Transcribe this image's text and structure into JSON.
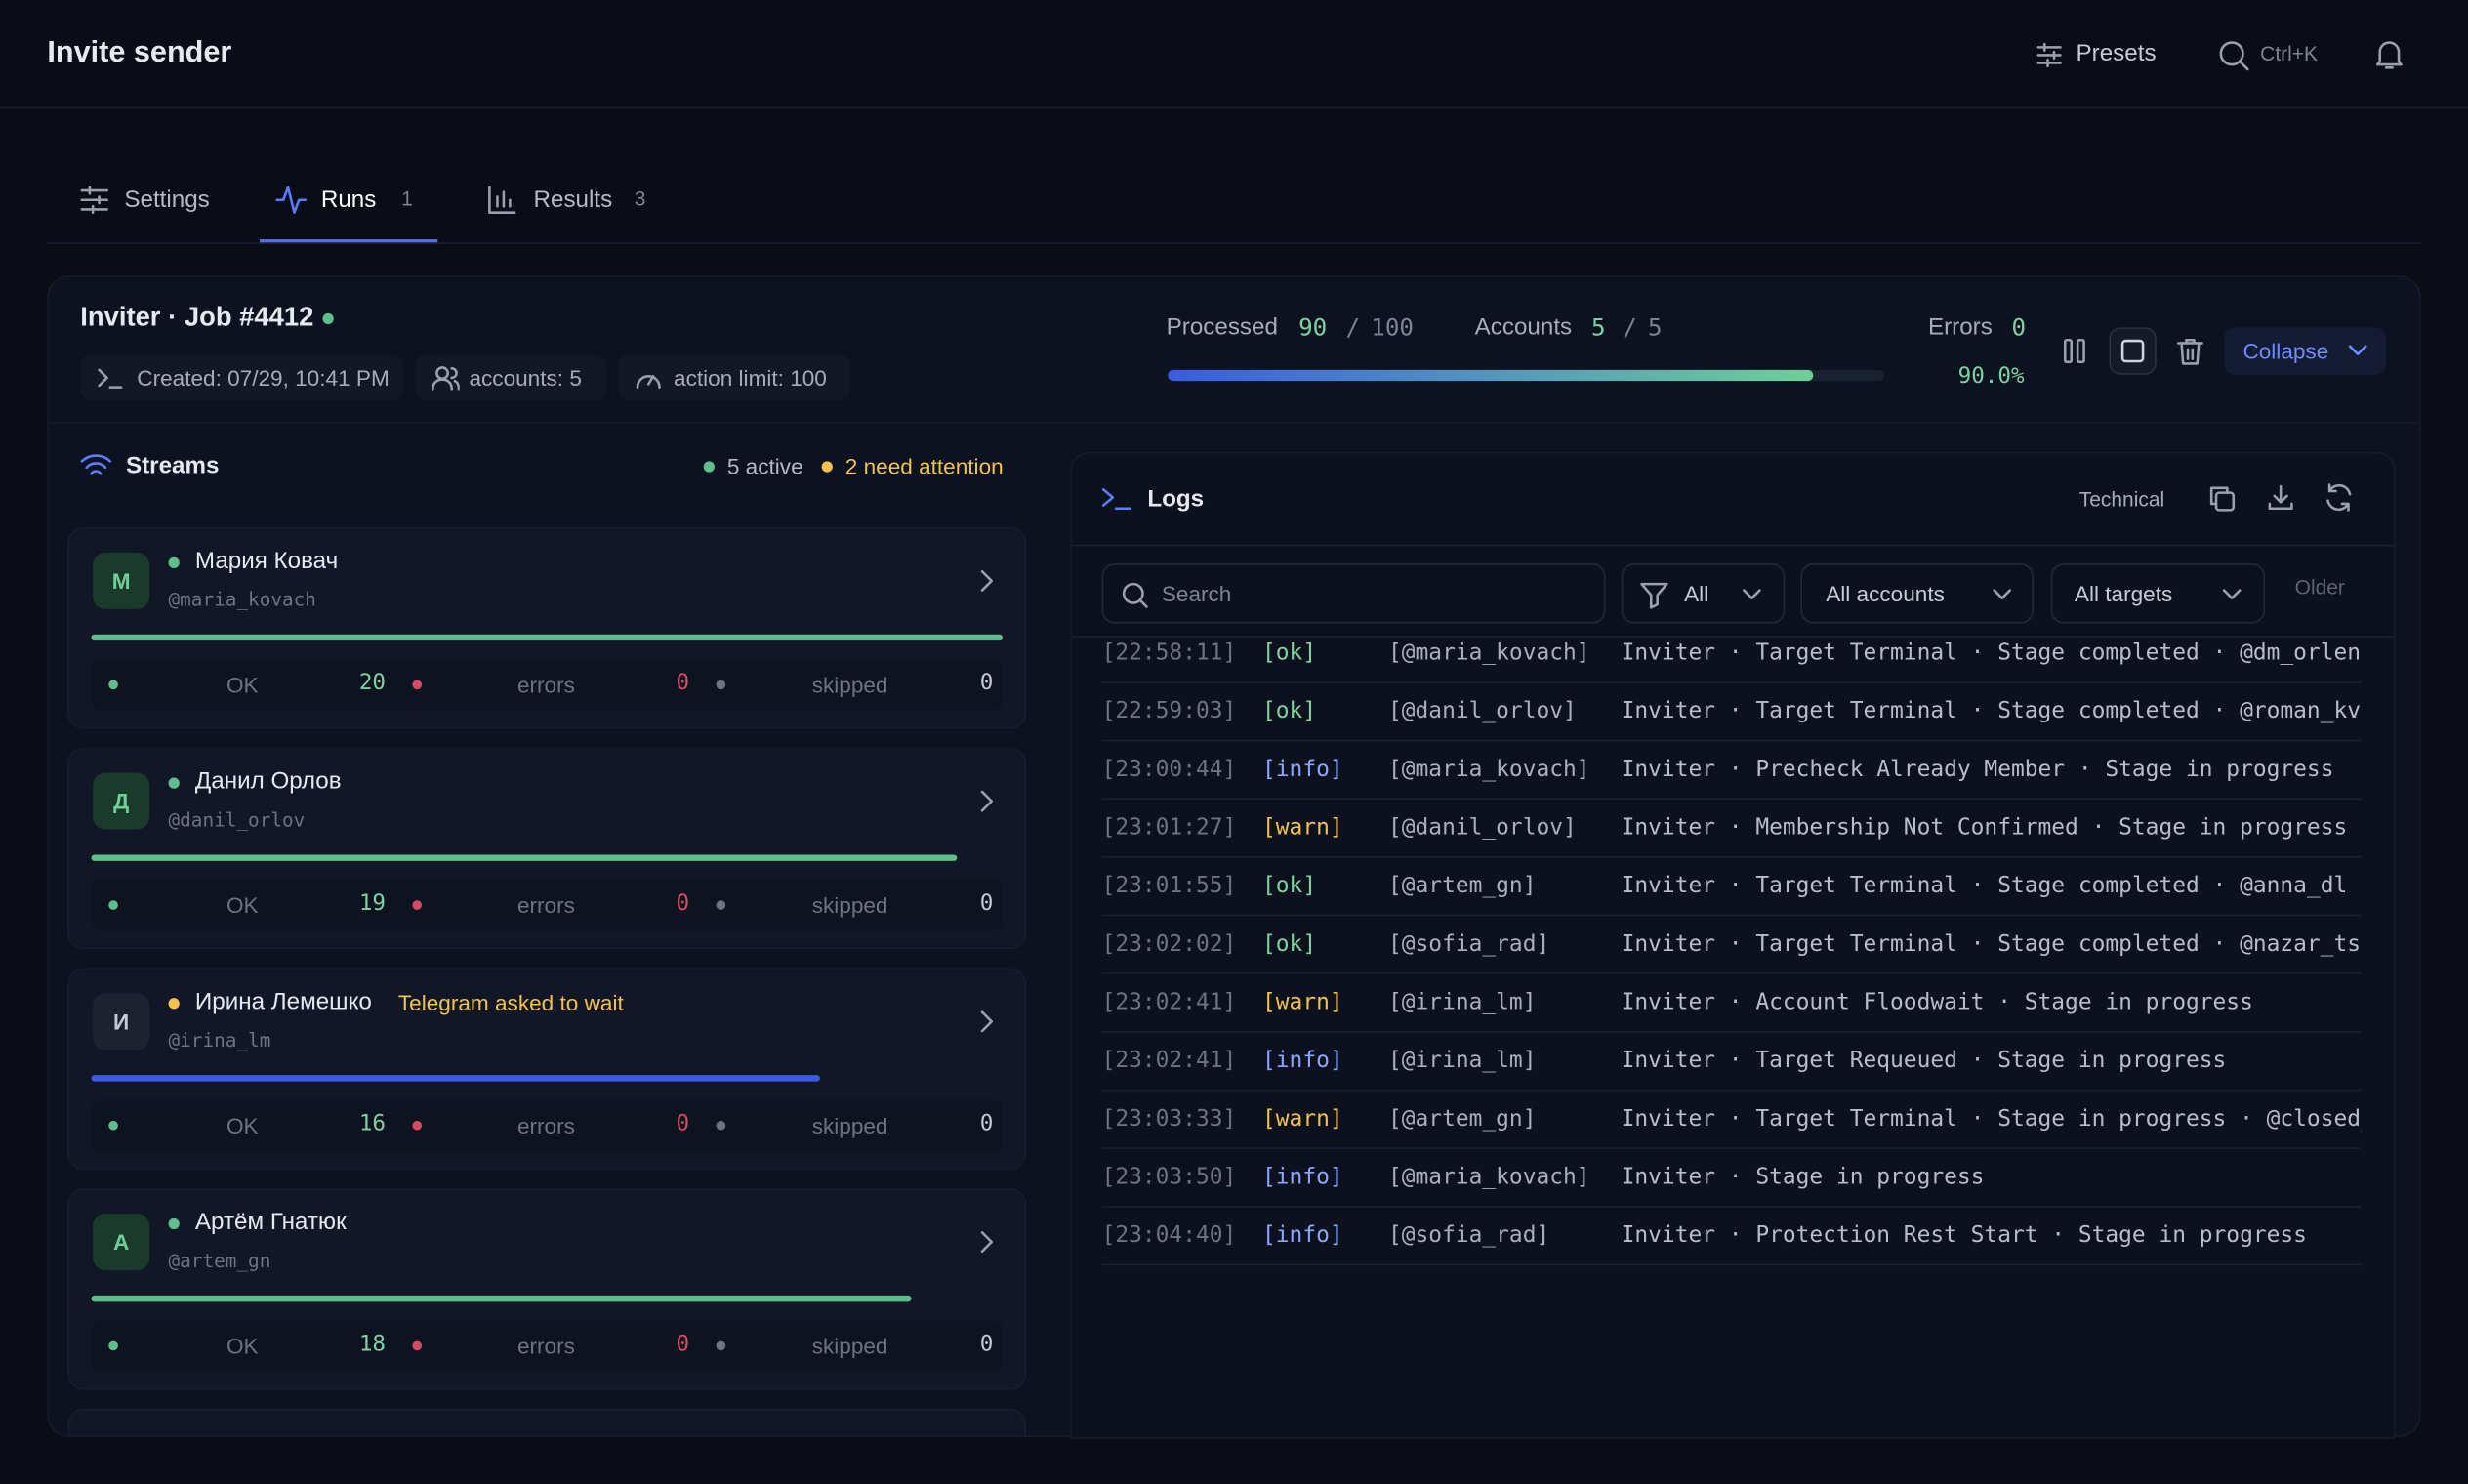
{
  "header": {
    "title": "Invite sender",
    "presets": "Presets",
    "search_shortcut": "Ctrl+K"
  },
  "tabs": [
    {
      "label": "Settings"
    },
    {
      "label": "Runs",
      "badge": "1"
    },
    {
      "label": "Results",
      "badge": "3"
    }
  ],
  "job": {
    "title": "Inviter · Job #4412",
    "meta": [
      "Created: 07/29, 10:41 PM",
      "accounts: 5",
      "action limit: 100"
    ],
    "processed_label": "Processed",
    "processed": 90,
    "processed_total": 100,
    "accounts_label": "Accounts",
    "accounts": 5,
    "accounts_total": 5,
    "errors_label": "Errors",
    "errors": 0,
    "percent": "90.0%",
    "collapse": "Collapse"
  },
  "streams": {
    "title": "Streams",
    "active": "5 active",
    "attention": "2 need attention",
    "labels": {
      "ok": "OK",
      "errors": "errors",
      "skipped": "skipped"
    },
    "items": [
      {
        "initial": "М",
        "name": "Мария Ковач",
        "handle": "@maria_kovach",
        "ok": 20,
        "errors": 0,
        "skipped": 0,
        "color": "#5fbf8a"
      },
      {
        "initial": "Д",
        "name": "Данил Орлов",
        "handle": "@danil_orlov",
        "ok": 19,
        "errors": 0,
        "skipped": 0,
        "color": "#5fbf8a"
      },
      {
        "initial": "И",
        "name": "Ирина Лемешко",
        "note": "Telegram asked to wait",
        "handle": "@irina_lm",
        "ok": 16,
        "errors": 0,
        "skipped": 0,
        "color": "#3b5be0"
      },
      {
        "initial": "А",
        "name": "Артём Гнатюк",
        "handle": "@artem_gn",
        "ok": 18,
        "errors": 0,
        "skipped": 0,
        "color": "#5fbf8a"
      }
    ]
  },
  "logs": {
    "title": "Logs",
    "technical": "Technical",
    "search": "Search",
    "filters": [
      "All",
      "All accounts",
      "All targets"
    ],
    "older": "Older",
    "entries": [
      {
        "time": "[22:58:11]",
        "level": "[ok]",
        "color": "#7fd1a0",
        "account": "[@maria_kovach]",
        "message": "Inviter · Target Terminal · Stage completed · @dm_orlenko"
      },
      {
        "time": "[22:59:03]",
        "level": "[ok]",
        "color": "#7fd1a0",
        "account": "[@danil_orlov]",
        "message": "Inviter · Target Terminal · Stage completed · @roman_kv"
      },
      {
        "time": "[23:00:44]",
        "level": "[info]",
        "color": "#8aa6ff",
        "account": "[@maria_kovach]",
        "message": "Inviter · Precheck Already Member · Stage in progress"
      },
      {
        "time": "[23:01:27]",
        "level": "[warn]",
        "color": "#f2c14e",
        "account": "[@danil_orlov]",
        "message": "Inviter · Membership Not Confirmed · Stage in progress · @lena_pv"
      },
      {
        "time": "[23:01:55]",
        "level": "[ok]",
        "color": "#7fd1a0",
        "account": "[@artem_gn]",
        "message": "Inviter · Target Terminal · Stage completed · @anna_dl"
      },
      {
        "time": "[23:02:02]",
        "level": "[ok]",
        "color": "#7fd1a0",
        "account": "[@sofia_rad]",
        "message": "Inviter · Target Terminal · Stage completed · @nazar_ts"
      },
      {
        "time": "[23:02:41]",
        "level": "[warn]",
        "color": "#f2c14e",
        "account": "[@irina_lm]",
        "message": "Inviter · Account Floodwait · Stage in progress"
      },
      {
        "time": "[23:02:41]",
        "level": "[info]",
        "color": "#8aa6ff",
        "account": "[@irina_lm]",
        "message": "Inviter · Target Requeued · Stage in progress"
      },
      {
        "time": "[23:03:33]",
        "level": "[warn]",
        "color": "#f2c14e",
        "account": "[@artem_gn]",
        "message": "Inviter · Target Terminal · Stage in progress · @closed_dm"
      },
      {
        "time": "[23:03:50]",
        "level": "[info]",
        "color": "#8aa6ff",
        "account": "[@maria_kovach]",
        "message": "Inviter · Stage in progress"
      },
      {
        "time": "[23:04:40]",
        "level": "[info]",
        "color": "#8aa6ff",
        "account": "[@sofia_rad]",
        "message": "Inviter · Protection Rest Start · Stage in progress"
      }
    ]
  }
}
